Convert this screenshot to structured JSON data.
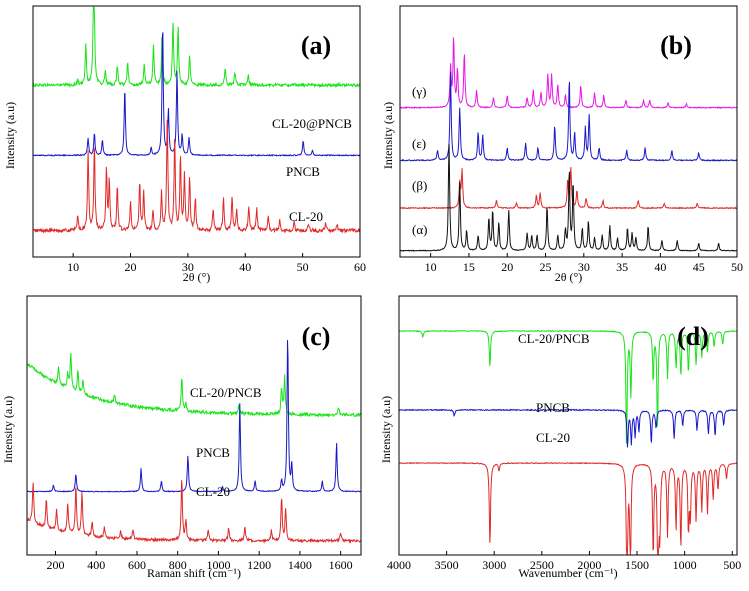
{
  "colors": {
    "green": "#19e319",
    "blue": "#1919c8",
    "red": "#e02a2a",
    "black": "#111111",
    "magenta": "#e619e6"
  },
  "chart_data": [
    {
      "panel": "(a)",
      "type": "line",
      "xlabel": "2θ (°)",
      "ylabel": "Intensity (a.u)",
      "xlim": [
        3,
        60
      ],
      "ylim": [
        0,
        10
      ],
      "xticks": [
        "10",
        "20",
        "30",
        "40",
        "50",
        "60"
      ],
      "series": [
        {
          "name": "CL-20@PNCB",
          "color": "green",
          "baseline": 6.85,
          "noise": 0.12,
          "peaks": [
            [
              10.8,
              0.2
            ],
            [
              12.2,
              1.6
            ],
            [
              13.6,
              5.7
            ],
            [
              15.6,
              0.6
            ],
            [
              17.7,
              0.8
            ],
            [
              19.5,
              0.9
            ],
            [
              22.4,
              0.8
            ],
            [
              24.0,
              1.6
            ],
            [
              25.5,
              1.9
            ],
            [
              27.4,
              2.5
            ],
            [
              28.3,
              2.3
            ],
            [
              30.3,
              1.2
            ],
            [
              36.5,
              0.7
            ],
            [
              38.2,
              0.5
            ],
            [
              40.5,
              0.4
            ]
          ]
        },
        {
          "name": "PNCB",
          "color": "blue",
          "baseline": 4.05,
          "noise": 0.04,
          "peaks": [
            [
              12.6,
              0.7
            ],
            [
              13.7,
              0.9
            ],
            [
              15.1,
              0.6
            ],
            [
              19.0,
              2.7
            ],
            [
              23.6,
              0.3
            ],
            [
              25.6,
              5.3
            ],
            [
              26.6,
              1.8
            ],
            [
              28.1,
              3.4
            ],
            [
              29.0,
              0.8
            ],
            [
              30.2,
              0.7
            ],
            [
              50.1,
              0.6
            ],
            [
              51.7,
              0.2
            ]
          ]
        },
        {
          "name": "CL-20",
          "color": "red",
          "baseline": 1.05,
          "noise": 0.14,
          "peaks": [
            [
              10.8,
              0.6
            ],
            [
              12.6,
              3.2
            ],
            [
              13.7,
              3.4
            ],
            [
              15.8,
              2.5
            ],
            [
              16.3,
              2.0
            ],
            [
              17.7,
              1.8
            ],
            [
              20.0,
              1.1
            ],
            [
              21.6,
              1.9
            ],
            [
              22.3,
              1.5
            ],
            [
              23.9,
              0.8
            ],
            [
              25.4,
              1.5
            ],
            [
              26.4,
              4.6
            ],
            [
              27.7,
              3.7
            ],
            [
              28.7,
              2.9
            ],
            [
              29.4,
              2.2
            ],
            [
              30.3,
              2.1
            ],
            [
              31.3,
              1.3
            ],
            [
              34.4,
              0.9
            ],
            [
              36.2,
              1.3
            ],
            [
              37.7,
              1.3
            ],
            [
              38.5,
              0.8
            ],
            [
              40.6,
              1.0
            ],
            [
              42.0,
              0.9
            ],
            [
              44.0,
              0.6
            ],
            [
              46.0,
              0.4
            ],
            [
              48.5,
              0.35
            ],
            [
              51.0,
              0.3
            ],
            [
              54.0,
              0.3
            ],
            [
              56.0,
              0.25
            ]
          ]
        }
      ]
    },
    {
      "panel": "(b)",
      "type": "line",
      "xlabel": "2θ (°)",
      "ylabel": "Intensity (a.u)",
      "xlim": [
        6,
        50
      ],
      "ylim": [
        0,
        10
      ],
      "xticks": [
        "10",
        "15",
        "20",
        "25",
        "30",
        "35",
        "40",
        "45",
        "50"
      ],
      "series": [
        {
          "name": "(γ)",
          "color": "magenta",
          "baseline": 5.95,
          "noise": 0.04,
          "peaks": [
            [
              12.6,
              1.6
            ],
            [
              13.0,
              2.8
            ],
            [
              13.5,
              1.5
            ],
            [
              14.4,
              2.2
            ],
            [
              16.0,
              0.7
            ],
            [
              18.2,
              0.4
            ],
            [
              20.0,
              0.5
            ],
            [
              22.6,
              0.4
            ],
            [
              23.4,
              0.7
            ],
            [
              24.4,
              0.6
            ],
            [
              25.3,
              1.3
            ],
            [
              25.8,
              1.3
            ],
            [
              26.6,
              0.9
            ],
            [
              27.6,
              0.5
            ],
            [
              29.6,
              0.9
            ],
            [
              31.4,
              0.6
            ],
            [
              32.6,
              0.5
            ],
            [
              35.5,
              0.3
            ],
            [
              37.8,
              0.3
            ],
            [
              38.6,
              0.3
            ],
            [
              41.0,
              0.2
            ],
            [
              43.4,
              0.15
            ]
          ]
        },
        {
          "name": "(ε)",
          "color": "blue",
          "baseline": 3.85,
          "noise": 0.04,
          "peaks": [
            [
              10.9,
              0.4
            ],
            [
              12.6,
              3.5
            ],
            [
              13.8,
              2.1
            ],
            [
              16.2,
              1.1
            ],
            [
              16.8,
              1.0
            ],
            [
              20.0,
              0.5
            ],
            [
              22.4,
              0.7
            ],
            [
              24.0,
              0.5
            ],
            [
              26.2,
              1.4
            ],
            [
              28.1,
              3.3
            ],
            [
              28.8,
              1.1
            ],
            [
              30.2,
              1.3
            ],
            [
              30.7,
              1.8
            ],
            [
              32.0,
              0.5
            ],
            [
              35.6,
              0.4
            ],
            [
              38.0,
              0.5
            ],
            [
              41.5,
              0.4
            ],
            [
              45.0,
              0.3
            ]
          ]
        },
        {
          "name": "(β)",
          "color": "red",
          "baseline": 1.95,
          "noise": 0.04,
          "peaks": [
            [
              13.8,
              1.0
            ],
            [
              14.1,
              1.5
            ],
            [
              18.6,
              0.3
            ],
            [
              21.2,
              0.2
            ],
            [
              23.8,
              0.5
            ],
            [
              24.3,
              0.6
            ],
            [
              27.9,
              1.1
            ],
            [
              28.3,
              1.6
            ],
            [
              29.1,
              0.7
            ],
            [
              30.3,
              0.4
            ],
            [
              32.5,
              0.3
            ],
            [
              37.1,
              0.3
            ],
            [
              40.5,
              0.2
            ],
            [
              44.8,
              0.2
            ]
          ]
        },
        {
          "name": "(α)",
          "color": "black",
          "baseline": 0.25,
          "noise": 0.03,
          "peaks": [
            [
              12.4,
              4.3
            ],
            [
              13.8,
              2.7
            ],
            [
              14.7,
              0.8
            ],
            [
              16.2,
              0.6
            ],
            [
              17.6,
              1.3
            ],
            [
              18.1,
              1.6
            ],
            [
              18.9,
              1.1
            ],
            [
              20.2,
              1.6
            ],
            [
              22.6,
              0.7
            ],
            [
              23.2,
              0.6
            ],
            [
              23.9,
              0.6
            ],
            [
              25.2,
              1.8
            ],
            [
              26.6,
              0.6
            ],
            [
              27.6,
              0.8
            ],
            [
              28.1,
              3.2
            ],
            [
              28.6,
              2.7
            ],
            [
              29.8,
              0.9
            ],
            [
              30.6,
              1.2
            ],
            [
              31.4,
              0.5
            ],
            [
              32.4,
              0.6
            ],
            [
              33.4,
              1.0
            ],
            [
              34.4,
              0.5
            ],
            [
              35.7,
              0.9
            ],
            [
              36.3,
              0.7
            ],
            [
              36.8,
              0.5
            ],
            [
              38.4,
              1.0
            ],
            [
              40.2,
              0.4
            ],
            [
              42.2,
              0.4
            ],
            [
              45.0,
              0.3
            ],
            [
              47.6,
              0.3
            ]
          ]
        }
      ]
    },
    {
      "panel": "(c)",
      "type": "line",
      "xlabel": "Raman shift (cm⁻¹)",
      "ylabel": "Intensity (a.u)",
      "xlim": [
        60,
        1700
      ],
      "ylim": [
        0,
        10
      ],
      "xticks": [
        "200",
        "400",
        "600",
        "800",
        "1000",
        "1200",
        "1400",
        "1600"
      ],
      "series": [
        {
          "name": "CL-20/PNCB",
          "color": "green",
          "baseline": 5.4,
          "noise": 0.12,
          "decay": [
            2.0,
            300
          ],
          "peaks": [
            [
              215,
              0.7
            ],
            [
              260,
              0.6
            ],
            [
              275,
              1.4
            ],
            [
              310,
              0.8
            ],
            [
              335,
              0.6
            ],
            [
              490,
              0.3
            ],
            [
              820,
              1.3
            ],
            [
              840,
              0.3
            ],
            [
              1100,
              0.3
            ],
            [
              1310,
              1.0
            ],
            [
              1325,
              1.5
            ],
            [
              1590,
              0.3
            ]
          ]
        },
        {
          "name": "PNCB",
          "color": "blue",
          "baseline": 2.45,
          "noise": 0.03,
          "peaks": [
            [
              190,
              0.25
            ],
            [
              300,
              0.7
            ],
            [
              620,
              0.9
            ],
            [
              720,
              0.4
            ],
            [
              850,
              1.4
            ],
            [
              1020,
              0.2
            ],
            [
              1105,
              3.4
            ],
            [
              1180,
              0.4
            ],
            [
              1310,
              0.4
            ],
            [
              1340,
              6.1
            ],
            [
              1360,
              1.0
            ],
            [
              1510,
              0.4
            ],
            [
              1580,
              1.9
            ]
          ]
        },
        {
          "name": "CL-20",
          "color": "red",
          "baseline": 0.55,
          "noise": 0.1,
          "decay": [
            0.8,
            200
          ],
          "peaks": [
            [
              90,
              1.6
            ],
            [
              155,
              1.1
            ],
            [
              205,
              0.8
            ],
            [
              260,
              1.2
            ],
            [
              300,
              1.9
            ],
            [
              330,
              1.7
            ],
            [
              380,
              0.6
            ],
            [
              440,
              0.4
            ],
            [
              520,
              0.3
            ],
            [
              580,
              0.4
            ],
            [
              820,
              2.4
            ],
            [
              840,
              0.8
            ],
            [
              950,
              0.4
            ],
            [
              1050,
              0.5
            ],
            [
              1130,
              0.5
            ],
            [
              1260,
              0.4
            ],
            [
              1310,
              1.7
            ],
            [
              1330,
              1.2
            ],
            [
              1600,
              0.3
            ]
          ]
        }
      ]
    },
    {
      "panel": "(d)",
      "type": "line",
      "xlabel": "Wavenumber (cm⁻¹)",
      "ylabel": "Intensity (a.u)",
      "xlim": [
        4000,
        450
      ],
      "ylim": [
        0,
        10
      ],
      "xticks": [
        "4000",
        "3500",
        "3000",
        "2500",
        "2000",
        "1500",
        "1000",
        "500"
      ],
      "series": [
        {
          "name": "CL-20/PNCB",
          "color": "green",
          "baseline": 8.65,
          "noise": 0.03,
          "peaks": [
            [
              3750,
              -0.25
            ],
            [
              3045,
              -1.4
            ],
            [
              1610,
              -4.4
            ],
            [
              1565,
              -2.5
            ],
            [
              1330,
              -1.9
            ],
            [
              1285,
              -3.8
            ],
            [
              1180,
              -1.8
            ],
            [
              1090,
              -1.4
            ],
            [
              1040,
              -1.7
            ],
            [
              960,
              -1.6
            ],
            [
              880,
              -1.3
            ],
            [
              820,
              -1.0
            ],
            [
              760,
              -0.8
            ],
            [
              690,
              -0.6
            ],
            [
              600,
              -0.5
            ]
          ]
        },
        {
          "name": "PNCB",
          "color": "blue",
          "baseline": 5.6,
          "noise": 0.04,
          "peaks": [
            [
              3420,
              -0.25
            ],
            [
              1600,
              -1.4
            ],
            [
              1560,
              -1.3
            ],
            [
              1520,
              -1.0
            ],
            [
              1480,
              -0.8
            ],
            [
              1350,
              -1.3
            ],
            [
              1300,
              -0.7
            ],
            [
              1110,
              -1.1
            ],
            [
              1020,
              -0.6
            ],
            [
              870,
              -0.8
            ],
            [
              750,
              -0.9
            ],
            [
              680,
              -1.0
            ],
            [
              590,
              -0.6
            ]
          ]
        },
        {
          "name": "CL-20",
          "color": "red",
          "baseline": 3.55,
          "noise": 0.03,
          "peaks": [
            [
              3045,
              -3.2
            ],
            [
              2950,
              -0.3
            ],
            [
              1605,
              -5.3
            ],
            [
              1570,
              -4.0
            ],
            [
              1330,
              -3.5
            ],
            [
              1280,
              -5.0
            ],
            [
              1260,
              -2.5
            ],
            [
              1180,
              -2.8
            ],
            [
              1090,
              -2.5
            ],
            [
              1040,
              -3.2
            ],
            [
              960,
              -2.5
            ],
            [
              940,
              -2.0
            ],
            [
              880,
              -2.2
            ],
            [
              820,
              -1.8
            ],
            [
              760,
              -1.9
            ],
            [
              700,
              -1.4
            ],
            [
              650,
              -1.0
            ],
            [
              560,
              -0.6
            ]
          ]
        }
      ]
    }
  ]
}
